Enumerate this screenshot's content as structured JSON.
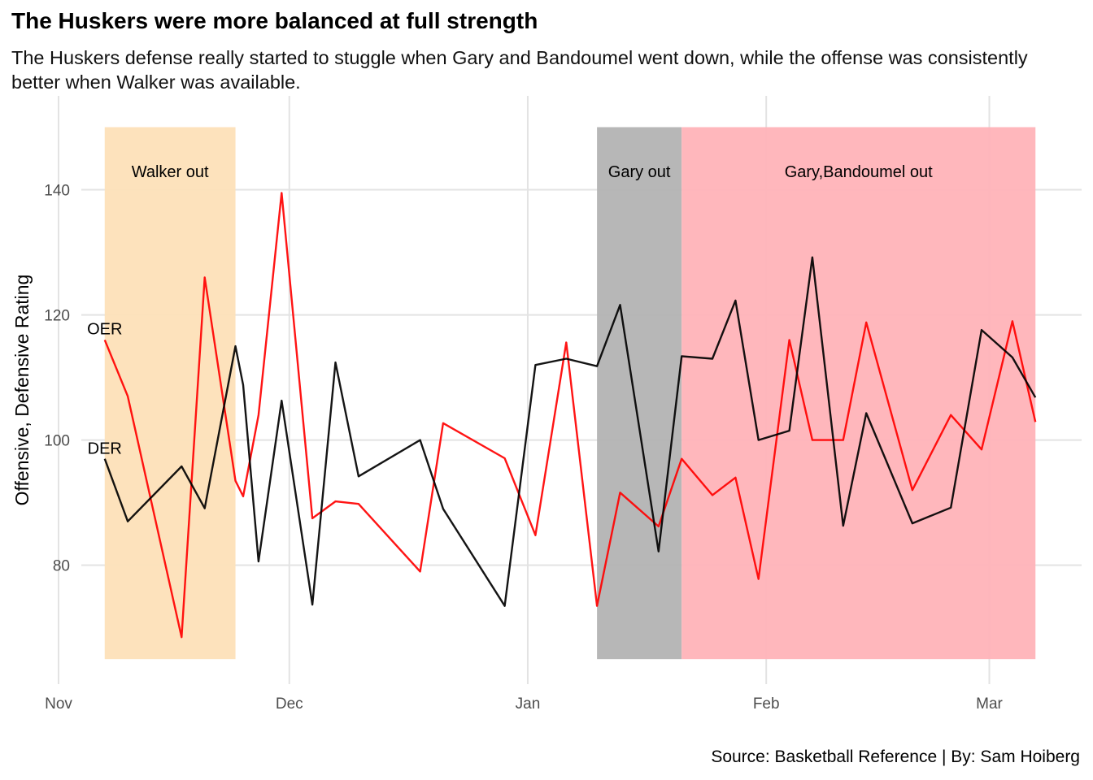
{
  "title": "The Huskers were more balanced at full strength",
  "subtitle": "The Huskers defense really started to stuggle when Gary and Bandoumel went down, while the offense was consistently better when Walker was available.",
  "caption": "Source: Basketball Reference | By: Sam Hoiberg",
  "chart_data": {
    "type": "line",
    "ylabel": "Offensive, Defensive Rating",
    "xlim": [
      "2019-11-01",
      "2020-03-13"
    ],
    "ylim": [
      61,
      155
    ],
    "grid": true,
    "x_ticks": [
      {
        "date": "2019-11-01",
        "label": "Nov"
      },
      {
        "date": "2019-12-01",
        "label": "Dec"
      },
      {
        "date": "2020-01-01",
        "label": "Jan"
      },
      {
        "date": "2020-02-01",
        "label": "Feb"
      },
      {
        "date": "2020-03-01",
        "label": "Mar"
      }
    ],
    "y_ticks": [
      80,
      100,
      120,
      140
    ],
    "shaded_periods": [
      {
        "label": "Walker out",
        "start": "2019-11-07",
        "end": "2019-11-24",
        "ymin": 65,
        "ymax": 150,
        "color": "#fde0b8"
      },
      {
        "label": "Gary out",
        "start": "2020-01-10",
        "end": "2020-01-21",
        "ymin": 65,
        "ymax": 150,
        "color": "#b3b3b3"
      },
      {
        "label": "Gary,Bandoumel out",
        "start": "2020-01-21",
        "end": "2020-03-07",
        "ymin": 65,
        "ymax": 150,
        "color": "#ffb3b8"
      }
    ],
    "series": [
      {
        "name": "OER",
        "color": "#ff0000",
        "points": [
          {
            "x": "2019-11-07",
            "y": 116
          },
          {
            "x": "2019-11-10",
            "y": 107
          },
          {
            "x": "2019-11-17",
            "y": 68.5
          },
          {
            "x": "2019-11-20",
            "y": 126
          },
          {
            "x": "2019-11-24",
            "y": 93.5
          },
          {
            "x": "2019-11-25",
            "y": 91
          },
          {
            "x": "2019-11-27",
            "y": 104
          },
          {
            "x": "2019-11-30",
            "y": 139.5
          },
          {
            "x": "2019-12-04",
            "y": 87.5
          },
          {
            "x": "2019-12-07",
            "y": 90.2
          },
          {
            "x": "2019-12-10",
            "y": 89.8
          },
          {
            "x": "2019-12-18",
            "y": 79
          },
          {
            "x": "2019-12-21",
            "y": 102.7
          },
          {
            "x": "2019-12-29",
            "y": 97.1
          },
          {
            "x": "2020-01-02",
            "y": 84.8
          },
          {
            "x": "2020-01-06",
            "y": 115.6
          },
          {
            "x": "2020-01-10",
            "y": 73.5
          },
          {
            "x": "2020-01-13",
            "y": 91.6
          },
          {
            "x": "2020-01-18",
            "y": 86.2
          },
          {
            "x": "2020-01-21",
            "y": 97
          },
          {
            "x": "2020-01-25",
            "y": 91.2
          },
          {
            "x": "2020-01-28",
            "y": 94
          },
          {
            "x": "2020-01-31",
            "y": 77.8
          },
          {
            "x": "2020-02-04",
            "y": 116
          },
          {
            "x": "2020-02-07",
            "y": 100
          },
          {
            "x": "2020-02-11",
            "y": 100
          },
          {
            "x": "2020-02-14",
            "y": 118.8
          },
          {
            "x": "2020-02-20",
            "y": 92
          },
          {
            "x": "2020-02-25",
            "y": 104
          },
          {
            "x": "2020-02-29",
            "y": 98.5
          },
          {
            "x": "2020-03-04",
            "y": 119
          },
          {
            "x": "2020-03-07",
            "y": 102.9
          }
        ]
      },
      {
        "name": "DER",
        "color": "#000000",
        "points": [
          {
            "x": "2019-11-07",
            "y": 97
          },
          {
            "x": "2019-11-10",
            "y": 87
          },
          {
            "x": "2019-11-17",
            "y": 95.8
          },
          {
            "x": "2019-11-20",
            "y": 89.1
          },
          {
            "x": "2019-11-24",
            "y": 115
          },
          {
            "x": "2019-11-25",
            "y": 108.8
          },
          {
            "x": "2019-11-27",
            "y": 80.6
          },
          {
            "x": "2019-11-30",
            "y": 106.3
          },
          {
            "x": "2019-12-04",
            "y": 73.7
          },
          {
            "x": "2019-12-07",
            "y": 112.4
          },
          {
            "x": "2019-12-10",
            "y": 94.2
          },
          {
            "x": "2019-12-18",
            "y": 100
          },
          {
            "x": "2019-12-21",
            "y": 89
          },
          {
            "x": "2019-12-29",
            "y": 73.5
          },
          {
            "x": "2020-01-02",
            "y": 112
          },
          {
            "x": "2020-01-06",
            "y": 113
          },
          {
            "x": "2020-01-10",
            "y": 111.8
          },
          {
            "x": "2020-01-13",
            "y": 121.6
          },
          {
            "x": "2020-01-18",
            "y": 82.2
          },
          {
            "x": "2020-01-21",
            "y": 113.4
          },
          {
            "x": "2020-01-25",
            "y": 113
          },
          {
            "x": "2020-01-28",
            "y": 122.3
          },
          {
            "x": "2020-01-31",
            "y": 100
          },
          {
            "x": "2020-02-04",
            "y": 101.5
          },
          {
            "x": "2020-02-07",
            "y": 129.2
          },
          {
            "x": "2020-02-11",
            "y": 86.3
          },
          {
            "x": "2020-02-14",
            "y": 104.3
          },
          {
            "x": "2020-02-20",
            "y": 86.7
          },
          {
            "x": "2020-02-25",
            "y": 89.2
          },
          {
            "x": "2020-02-29",
            "y": 117.6
          },
          {
            "x": "2020-03-04",
            "y": 113.2
          },
          {
            "x": "2020-03-07",
            "y": 106.8
          }
        ]
      }
    ],
    "series_labels": [
      {
        "text": "OER",
        "x": "2019-11-07",
        "y": 117.8
      },
      {
        "text": "DER",
        "x": "2019-11-07",
        "y": 98.7
      }
    ]
  }
}
